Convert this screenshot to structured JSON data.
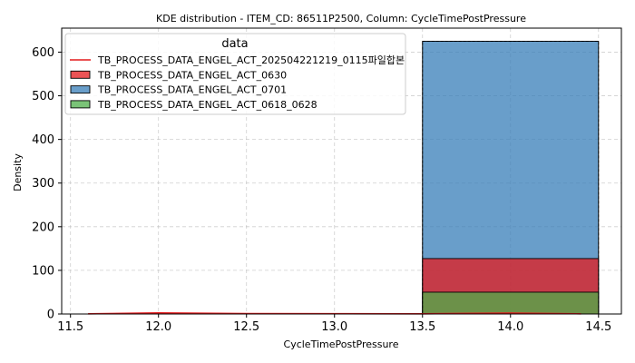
{
  "chart_data": {
    "type": "bar",
    "title": "KDE distribution - ITEM_CD: 86511P2500, Column: CycleTimePostPressure",
    "xlabel": "CycleTimePostPressure",
    "ylabel": "Density",
    "xlim": [
      11.45,
      14.63
    ],
    "ylim": [
      0,
      655
    ],
    "x_ticks": [
      "11.5",
      "12.0",
      "12.5",
      "13.0",
      "13.5",
      "14.0",
      "14.5"
    ],
    "y_ticks": [
      "0",
      "100",
      "200",
      "300",
      "400",
      "500",
      "600"
    ],
    "grid": true,
    "legend": {
      "title": "data",
      "placement": "top-left",
      "entries": [
        {
          "label": "TB_PROCESS_DATA_ENGEL_ACT_202504221219_0115파일합본",
          "marker": "line",
          "color": "#e41a1c"
        },
        {
          "label": "TB_PROCESS_DATA_ENGEL_ACT_0630",
          "marker": "patch",
          "color": "#e41a1c"
        },
        {
          "label": "TB_PROCESS_DATA_ENGEL_ACT_0701",
          "marker": "patch",
          "color": "#377eb8"
        },
        {
          "label": "TB_PROCESS_DATA_ENGEL_ACT_0618_0628",
          "marker": "patch",
          "color": "#4daf4a"
        }
      ]
    },
    "series": [
      {
        "name": "TB_PROCESS_DATA_ENGEL_ACT_0701",
        "kind": "bar",
        "color": "#377eb8",
        "bins": [
          [
            13.5,
            14.5,
            625
          ]
        ]
      },
      {
        "name": "TB_PROCESS_DATA_ENGEL_ACT_0630",
        "kind": "bar",
        "color": "#e41a1c",
        "bins": [
          [
            13.5,
            14.5,
            127
          ]
        ]
      },
      {
        "name": "TB_PROCESS_DATA_ENGEL_ACT_0618_0628",
        "kind": "bar",
        "color": "#4daf4a",
        "bins": [
          [
            13.5,
            14.5,
            50
          ]
        ]
      },
      {
        "name": "TB_PROCESS_DATA_ENGEL_ACT_202504221219_0115파일합본",
        "kind": "line",
        "color": "#e41a1c",
        "x": [
          11.6,
          12.0,
          12.5,
          13.0,
          13.5,
          14.0,
          14.4
        ],
        "y": [
          0.5,
          2.5,
          0.8,
          0.6,
          0.5,
          2,
          0.5
        ]
      }
    ]
  }
}
